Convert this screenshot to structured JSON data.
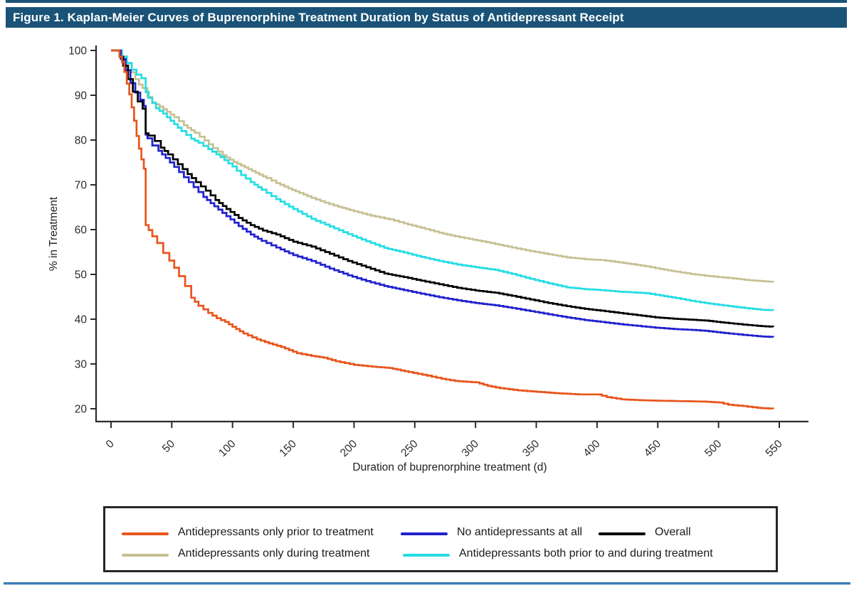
{
  "title_bar": {
    "text": "Figure 1. Kaplan-Meier Curves of Buprenorphine Treatment Duration by Status of Antidepressant Receipt",
    "bg_color": "#1A5377",
    "text_color": "#FFFFFF"
  },
  "chart_data": {
    "type": "line",
    "subtype": "kaplan-meier-step",
    "title": "Kaplan-Meier Curves of Buprenorphine Treatment Duration by Status of Antidepressant Receipt",
    "xlabel": "Duration of buprenorphine treatment (d)",
    "ylabel": "% in Treatment",
    "xlim": [
      0,
      550
    ],
    "ylim": [
      20,
      100
    ],
    "x_ticks": [
      0,
      50,
      100,
      150,
      200,
      250,
      300,
      350,
      400,
      450,
      500,
      550
    ],
    "y_ticks": [
      20,
      30,
      40,
      50,
      60,
      70,
      80,
      90,
      100
    ],
    "grid": false,
    "axis_color": "#2B2B2B",
    "legend_position": "bottom-box",
    "series": [
      {
        "key": "only-prior",
        "name": "Antidepressants only prior to treatment",
        "color": "#E8551C",
        "points": [
          [
            0,
            100
          ],
          [
            5,
            100
          ],
          [
            7,
            98.6
          ],
          [
            9,
            97.4
          ],
          [
            11,
            95.2
          ],
          [
            13,
            92.6
          ],
          [
            15,
            90.2
          ],
          [
            17,
            87.3
          ],
          [
            19,
            84.3
          ],
          [
            21,
            80.9
          ],
          [
            23,
            78.1
          ],
          [
            25,
            75.7
          ],
          [
            27,
            73.6
          ],
          [
            28.5,
            72.3
          ],
          [
            28.5,
            61
          ],
          [
            31,
            59.9
          ],
          [
            34,
            58.5
          ],
          [
            38,
            57
          ],
          [
            43,
            54.8
          ],
          [
            48,
            53.1
          ],
          [
            52,
            51.5
          ],
          [
            56,
            49.6
          ],
          [
            61,
            47.4
          ],
          [
            66,
            44.8
          ],
          [
            72,
            43
          ],
          [
            80,
            41.4
          ],
          [
            87,
            40.2
          ],
          [
            94,
            39.4
          ],
          [
            100,
            38.3
          ],
          [
            109,
            36.8
          ],
          [
            120,
            35.5
          ],
          [
            130,
            34.6
          ],
          [
            140,
            33.8
          ],
          [
            153,
            32.4
          ],
          [
            165,
            31.8
          ],
          [
            175,
            31.4
          ],
          [
            185,
            30.6
          ],
          [
            200,
            29.8
          ],
          [
            215,
            29.4
          ],
          [
            229,
            29.1
          ],
          [
            245,
            28.2
          ],
          [
            260,
            27.4
          ],
          [
            272,
            26.7
          ],
          [
            283,
            26.2
          ],
          [
            300,
            25.9
          ],
          [
            310,
            25.1
          ],
          [
            320,
            24.6
          ],
          [
            335,
            24.1
          ],
          [
            350,
            23.8
          ],
          [
            365,
            23.5
          ],
          [
            385,
            23.2
          ],
          [
            400,
            23.2
          ],
          [
            408,
            22.6
          ],
          [
            420,
            22.1
          ],
          [
            435,
            21.9
          ],
          [
            450,
            21.8
          ],
          [
            468,
            21.7
          ],
          [
            487,
            21.6
          ],
          [
            500,
            21.4
          ],
          [
            508,
            20.9
          ],
          [
            520,
            20.6
          ],
          [
            532,
            20.2
          ],
          [
            545,
            20
          ]
        ]
      },
      {
        "key": "only-during",
        "name": "Antidepressants only during treatment",
        "color": "#C7C194",
        "points": [
          [
            0,
            100
          ],
          [
            5,
            100
          ],
          [
            9,
            98.7
          ],
          [
            13,
            97.1
          ],
          [
            17,
            95.1
          ],
          [
            20,
            93.6
          ],
          [
            23,
            92.4
          ],
          [
            26,
            91.6
          ],
          [
            30,
            89.6
          ],
          [
            34,
            88.4
          ],
          [
            40,
            87.5
          ],
          [
            46,
            86.3
          ],
          [
            52,
            85.1
          ],
          [
            60,
            83.3
          ],
          [
            69,
            81.6
          ],
          [
            77,
            79.9
          ],
          [
            84,
            78.2
          ],
          [
            92,
            76.6
          ],
          [
            101,
            75.1
          ],
          [
            110,
            73.9
          ],
          [
            119,
            72.7
          ],
          [
            128,
            71.5
          ],
          [
            136,
            70.4
          ],
          [
            146,
            69.2
          ],
          [
            155,
            68.2
          ],
          [
            165,
            67.1
          ],
          [
            176,
            66
          ],
          [
            187,
            65.1
          ],
          [
            200,
            64.1
          ],
          [
            214,
            63.1
          ],
          [
            229,
            62.3
          ],
          [
            241,
            61.4
          ],
          [
            255,
            60.4
          ],
          [
            270,
            59.3
          ],
          [
            283,
            58.5
          ],
          [
            295,
            57.9
          ],
          [
            305,
            57.4
          ],
          [
            316,
            56.8
          ],
          [
            330,
            56
          ],
          [
            345,
            55.2
          ],
          [
            360,
            54.5
          ],
          [
            375,
            53.8
          ],
          [
            390,
            53.4
          ],
          [
            403,
            53.2
          ],
          [
            415,
            52.8
          ],
          [
            428,
            52.3
          ],
          [
            440,
            51.8
          ],
          [
            452,
            51.2
          ],
          [
            465,
            50.6
          ],
          [
            477,
            50.1
          ],
          [
            489,
            49.7
          ],
          [
            500,
            49.4
          ],
          [
            512,
            49.1
          ],
          [
            525,
            48.7
          ],
          [
            535,
            48.5
          ],
          [
            545,
            48.3
          ]
        ]
      },
      {
        "key": "none",
        "name": "No antidepressants at all",
        "color": "#2121CE",
        "points": [
          [
            0,
            100
          ],
          [
            4,
            100
          ],
          [
            8,
            98.1
          ],
          [
            12,
            95.6
          ],
          [
            16,
            92.7
          ],
          [
            20,
            90.6
          ],
          [
            24,
            89
          ],
          [
            27,
            87.6
          ],
          [
            28.5,
            87.1
          ],
          [
            28.5,
            81.2
          ],
          [
            30,
            80.4
          ],
          [
            34,
            78.8
          ],
          [
            39,
            77.6
          ],
          [
            45,
            76
          ],
          [
            52,
            74
          ],
          [
            60,
            71.7
          ],
          [
            68,
            69.5
          ],
          [
            76,
            67.3
          ],
          [
            85,
            65.2
          ],
          [
            95,
            63
          ],
          [
            105,
            60.8
          ],
          [
            115,
            58.9
          ],
          [
            124,
            57.5
          ],
          [
            136,
            56
          ],
          [
            150,
            54.3
          ],
          [
            165,
            53
          ],
          [
            180,
            51.3
          ],
          [
            195,
            49.8
          ],
          [
            210,
            48.5
          ],
          [
            225,
            47.4
          ],
          [
            241,
            46.5
          ],
          [
            255,
            45.7
          ],
          [
            270,
            44.9
          ],
          [
            285,
            44.2
          ],
          [
            300,
            43.6
          ],
          [
            316,
            43.1
          ],
          [
            330,
            42.5
          ],
          [
            345,
            41.8
          ],
          [
            360,
            41.1
          ],
          [
            375,
            40.4
          ],
          [
            390,
            39.8
          ],
          [
            403,
            39.4
          ],
          [
            418,
            38.9
          ],
          [
            433,
            38.5
          ],
          [
            448,
            38.1
          ],
          [
            463,
            37.8
          ],
          [
            478,
            37.6
          ],
          [
            489,
            37.4
          ],
          [
            505,
            36.9
          ],
          [
            520,
            36.5
          ],
          [
            532,
            36.2
          ],
          [
            545,
            36
          ]
        ]
      },
      {
        "key": "both",
        "name": "Antidepressants both prior to and during treatment",
        "color": "#25DDE4",
        "points": [
          [
            0,
            100
          ],
          [
            5,
            100
          ],
          [
            9,
            98.6
          ],
          [
            13,
            97.2
          ],
          [
            17,
            95.7
          ],
          [
            21,
            94.6
          ],
          [
            25,
            93.8
          ],
          [
            28.5,
            93.3
          ],
          [
            28.5,
            90.7
          ],
          [
            31,
            89.4
          ],
          [
            37,
            87.1
          ],
          [
            43,
            85.9
          ],
          [
            49,
            84.3
          ],
          [
            58,
            82
          ],
          [
            66,
            80.3
          ],
          [
            72,
            79.4
          ],
          [
            80,
            78
          ],
          [
            90,
            76.2
          ],
          [
            100,
            74.1
          ],
          [
            107,
            72.2
          ],
          [
            115,
            70.6
          ],
          [
            124,
            68.9
          ],
          [
            136,
            66.8
          ],
          [
            150,
            64.6
          ],
          [
            165,
            62.4
          ],
          [
            180,
            60.7
          ],
          [
            195,
            59
          ],
          [
            210,
            57.4
          ],
          [
            225,
            55.9
          ],
          [
            241,
            54.9
          ],
          [
            255,
            53.9
          ],
          [
            270,
            53
          ],
          [
            285,
            52.2
          ],
          [
            300,
            51.6
          ],
          [
            316,
            51
          ],
          [
            330,
            50.1
          ],
          [
            345,
            49
          ],
          [
            360,
            48
          ],
          [
            375,
            47.1
          ],
          [
            390,
            46.7
          ],
          [
            403,
            46.5
          ],
          [
            415,
            46.2
          ],
          [
            428,
            46
          ],
          [
            440,
            45.8
          ],
          [
            452,
            45.3
          ],
          [
            465,
            44.7
          ],
          [
            477,
            44.1
          ],
          [
            489,
            43.6
          ],
          [
            500,
            43.2
          ],
          [
            512,
            42.8
          ],
          [
            525,
            42.4
          ],
          [
            535,
            42.1
          ],
          [
            545,
            42
          ]
        ]
      },
      {
        "key": "overall",
        "name": "Overall",
        "color": "#000000",
        "points": [
          [
            0,
            100
          ],
          [
            4,
            100
          ],
          [
            7,
            98.6
          ],
          [
            10,
            96.6
          ],
          [
            14,
            93.6
          ],
          [
            18,
            90.8
          ],
          [
            22,
            88.6
          ],
          [
            26,
            87
          ],
          [
            28.5,
            85.6
          ],
          [
            28.5,
            81.5
          ],
          [
            31,
            81
          ],
          [
            36,
            79.8
          ],
          [
            41,
            78.3
          ],
          [
            47,
            76.8
          ],
          [
            55,
            74.6
          ],
          [
            63,
            72.4
          ],
          [
            70,
            70.6
          ],
          [
            78,
            68.7
          ],
          [
            86,
            66.6
          ],
          [
            95,
            64.6
          ],
          [
            105,
            62.6
          ],
          [
            115,
            61
          ],
          [
            125,
            59.8
          ],
          [
            136,
            58.9
          ],
          [
            150,
            57.3
          ],
          [
            165,
            56.2
          ],
          [
            180,
            54.6
          ],
          [
            195,
            53
          ],
          [
            210,
            51.6
          ],
          [
            225,
            50.2
          ],
          [
            241,
            49.4
          ],
          [
            255,
            48.6
          ],
          [
            270,
            47.8
          ],
          [
            285,
            47
          ],
          [
            300,
            46.4
          ],
          [
            316,
            45.9
          ],
          [
            330,
            45.2
          ],
          [
            345,
            44.4
          ],
          [
            360,
            43.6
          ],
          [
            375,
            42.9
          ],
          [
            390,
            42.3
          ],
          [
            403,
            41.9
          ],
          [
            418,
            41.4
          ],
          [
            433,
            40.9
          ],
          [
            448,
            40.4
          ],
          [
            463,
            40.1
          ],
          [
            476,
            39.9
          ],
          [
            489,
            39.7
          ],
          [
            505,
            39.2
          ],
          [
            520,
            38.8
          ],
          [
            532,
            38.5
          ],
          [
            545,
            38.3
          ]
        ]
      }
    ],
    "legend": {
      "rows": [
        [
          {
            "series_key": "only-prior",
            "label": "Antidepressants only prior to treatment"
          },
          {
            "series_key": "none",
            "label": "No antidepressants at all"
          },
          {
            "series_key": "overall",
            "label": "Overall"
          }
        ],
        [
          {
            "series_key": "only-during",
            "label": "Antidepressants only during treatment"
          },
          {
            "series_key": "both",
            "label": "Antidepressants both prior to and during treatment"
          }
        ]
      ]
    }
  }
}
